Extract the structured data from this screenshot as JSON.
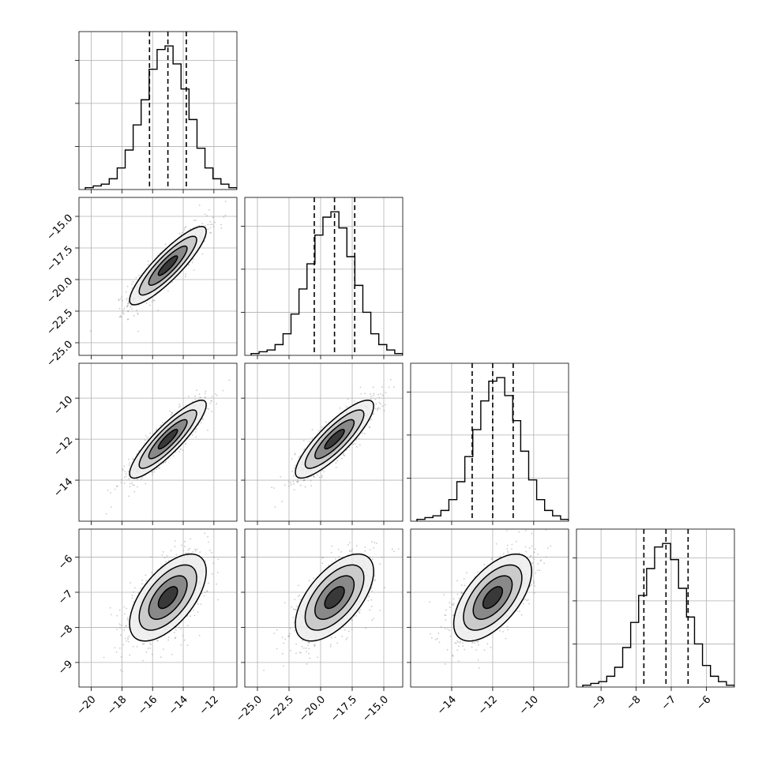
{
  "chart_data": {
    "type": "corner",
    "parameters": [
      {
        "mean": -15.0,
        "sd": 1.25,
        "range": [
          -20.8,
          -10.5
        ],
        "ticks": [
          -20,
          -18,
          -16,
          -14,
          -12
        ],
        "tick_labels": [
          "−20",
          "−18",
          "−16",
          "−14",
          "−12"
        ],
        "quantiles": [
          -16.2,
          -15.0,
          -13.8
        ]
      },
      {
        "mean": -18.9,
        "sd": 1.55,
        "range": [
          -26.0,
          -13.5
        ],
        "ticks": [
          -25.0,
          -22.5,
          -20.0,
          -17.5,
          -15.0
        ],
        "tick_labels": [
          "−25.0",
          "−22.5",
          "−20.0",
          "−17.5",
          "−15.0"
        ],
        "quantiles": [
          -20.5,
          -18.9,
          -17.3
        ]
      },
      {
        "mean": -12.0,
        "sd": 0.95,
        "range": [
          -16.0,
          -8.3
        ],
        "ticks": [
          -14,
          -12,
          -10
        ],
        "tick_labels": [
          "−14",
          "−12",
          "−10"
        ],
        "quantiles": [
          -13.0,
          -12.0,
          -11.0
        ]
      },
      {
        "mean": -7.15,
        "sd": 0.62,
        "range": [
          -9.7,
          -5.2
        ],
        "ticks": [
          -9,
          -8,
          -7,
          -6
        ],
        "tick_labels": [
          "−9",
          "−8",
          "−7",
          "−6"
        ],
        "quantiles": [
          -7.78,
          -7.15,
          -6.52
        ]
      }
    ],
    "correlations": [
      [
        1.0,
        0.88,
        0.88,
        0.6
      ],
      [
        0.88,
        1.0,
        0.85,
        0.6
      ],
      [
        0.88,
        0.85,
        1.0,
        0.6
      ],
      [
        0.6,
        0.6,
        0.6,
        1.0
      ]
    ],
    "histograms": [
      {
        "counts": [
          1,
          2,
          3,
          6,
          12,
          22,
          36,
          50,
          67,
          78,
          80,
          70,
          56,
          39,
          23,
          12,
          6,
          3,
          1
        ]
      },
      {
        "counts": [
          1,
          2,
          3,
          6,
          12,
          23,
          37,
          51,
          67,
          77,
          80,
          71,
          55,
          39,
          24,
          12,
          6,
          3,
          1
        ]
      },
      {
        "counts": [
          1,
          2,
          3,
          6,
          12,
          22,
          36,
          51,
          67,
          78,
          80,
          70,
          56,
          39,
          23,
          12,
          6,
          3,
          1
        ]
      },
      {
        "counts": [
          1,
          2,
          3,
          6,
          11,
          22,
          36,
          51,
          66,
          78,
          80,
          71,
          55,
          39,
          24,
          12,
          6,
          3,
          1
        ]
      }
    ],
    "contour_levels_sigma": [
      0.5,
      1.0,
      1.5,
      2.0
    ],
    "grid": true
  }
}
